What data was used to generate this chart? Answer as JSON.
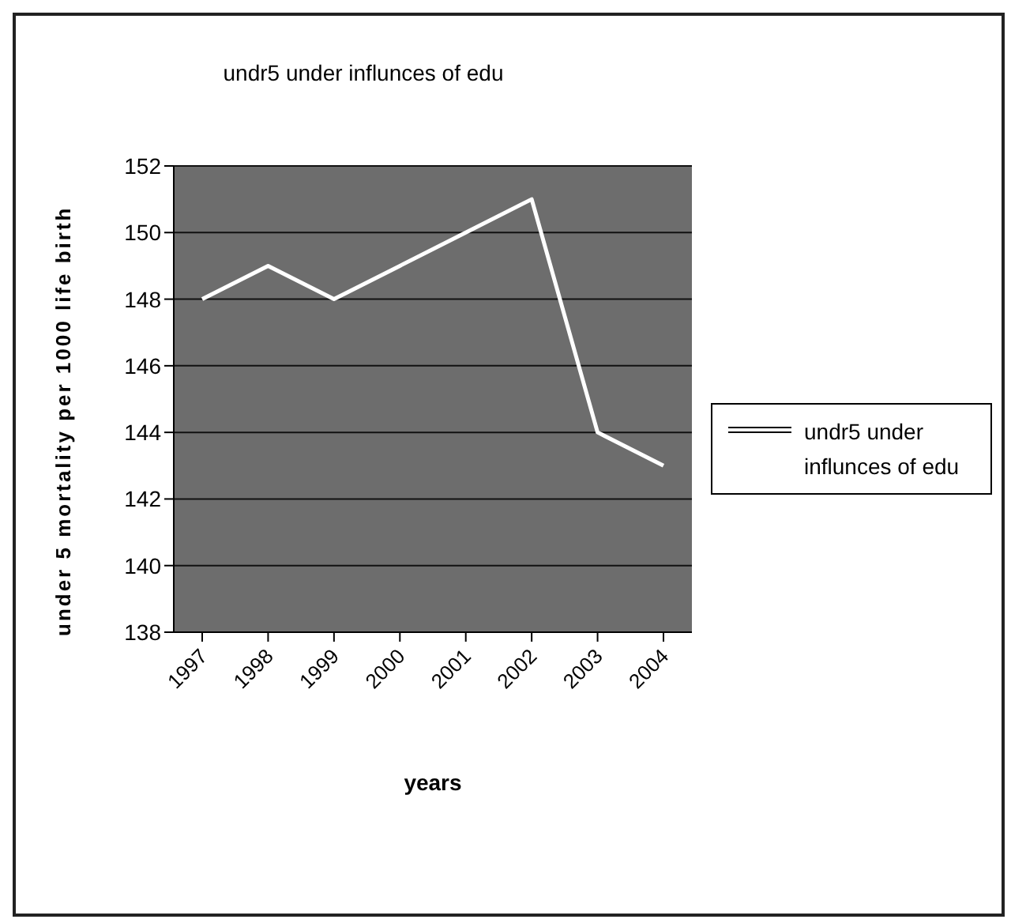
{
  "chart_data": {
    "type": "line",
    "title": "undr5 under influnces of edu",
    "xlabel": "years",
    "ylabel": "under 5 mortality per 1000 life birth",
    "categories": [
      "1997",
      "1998",
      "1999",
      "2000",
      "2001",
      "2002",
      "2003",
      "2004"
    ],
    "series": [
      {
        "name": "undr5 under influnces of edu",
        "color": "#ffffff",
        "values": [
          148,
          149,
          148,
          149,
          150,
          151,
          144,
          143
        ]
      }
    ],
    "ylim": [
      138,
      152
    ],
    "yticks": [
      138,
      140,
      142,
      144,
      146,
      148,
      150,
      152
    ],
    "grid": "y",
    "legend": "right",
    "marker": "none",
    "line_style": "solid"
  }
}
